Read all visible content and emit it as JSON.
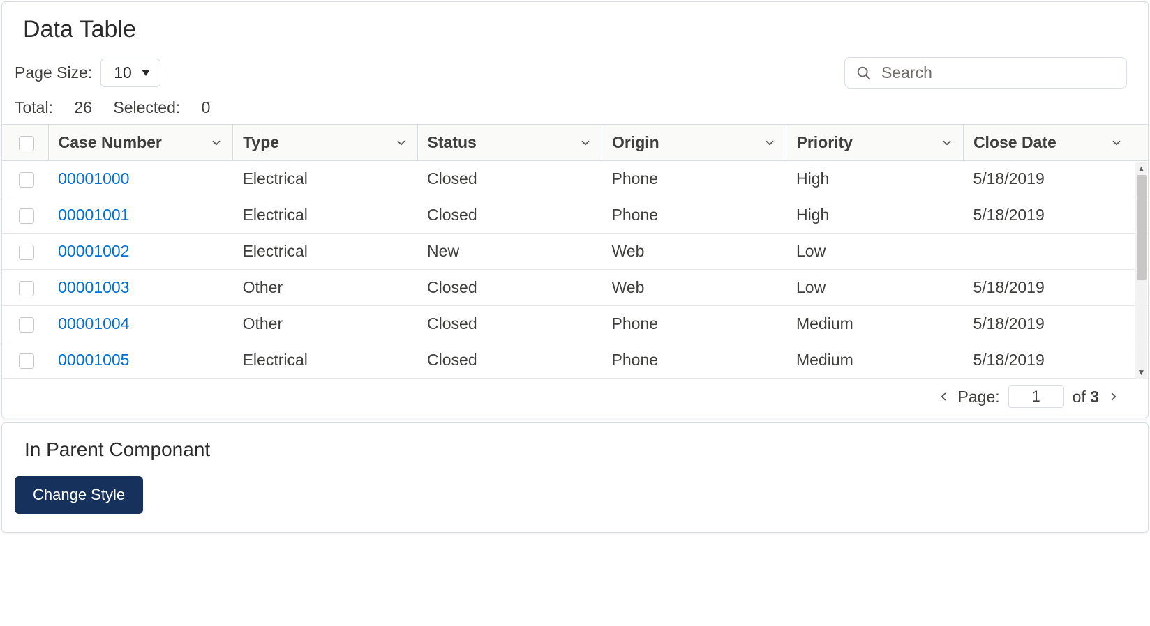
{
  "header": {
    "title": "Data Table",
    "page_size_label": "Page Size:",
    "page_size_value": "10",
    "search_placeholder": "Search",
    "total_label": "Total:",
    "total_value": "26",
    "selected_label": "Selected:",
    "selected_value": "0"
  },
  "table": {
    "columns": {
      "case_number": "Case Number",
      "type": "Type",
      "status": "Status",
      "origin": "Origin",
      "priority": "Priority",
      "close_date": "Close Date"
    },
    "rows": [
      {
        "case": "00001000",
        "type": "Electrical",
        "status": "Closed",
        "origin": "Phone",
        "priority": "High",
        "close": "5/18/2019"
      },
      {
        "case": "00001001",
        "type": "Electrical",
        "status": "Closed",
        "origin": "Phone",
        "priority": "High",
        "close": "5/18/2019"
      },
      {
        "case": "00001002",
        "type": "Electrical",
        "status": "New",
        "origin": "Web",
        "priority": "Low",
        "close": ""
      },
      {
        "case": "00001003",
        "type": "Other",
        "status": "Closed",
        "origin": "Web",
        "priority": "Low",
        "close": "5/18/2019"
      },
      {
        "case": "00001004",
        "type": "Other",
        "status": "Closed",
        "origin": "Phone",
        "priority": "Medium",
        "close": "5/18/2019"
      },
      {
        "case": "00001005",
        "type": "Electrical",
        "status": "Closed",
        "origin": "Phone",
        "priority": "Medium",
        "close": "5/18/2019"
      }
    ]
  },
  "pagination": {
    "page_label": "Page:",
    "current_page": "1",
    "of_label": "of",
    "total_pages": "3"
  },
  "bottom": {
    "title": "In Parent Componant",
    "button_label": "Change Style"
  },
  "colors": {
    "link": "#0070d2",
    "primary_button_bg": "#16325c",
    "border": "#d8dde6",
    "header_bg": "#fafaf9",
    "text": "#3e3e3c"
  }
}
